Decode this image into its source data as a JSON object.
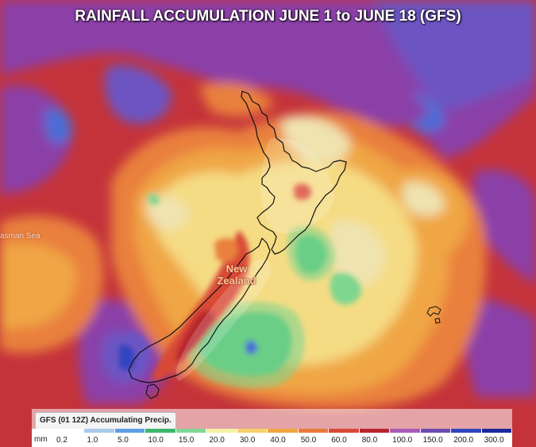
{
  "title": "RAINFALL ACCUMULATION JUNE 1 to JUNE 18 (GFS)",
  "labels": {
    "sea": "asman Sea",
    "country": "New Zealand"
  },
  "legend": {
    "title": "GFS (01 12Z) Accumulating Precip.",
    "unit": "mm",
    "items": [
      {
        "value": "0.2",
        "color": "#ffffff"
      },
      {
        "value": "1.0",
        "color": "#aacbea"
      },
      {
        "value": "5.0",
        "color": "#5f9ee6"
      },
      {
        "value": "10.0",
        "color": "#3fb66e"
      },
      {
        "value": "15.0",
        "color": "#7fd994"
      },
      {
        "value": "20.0",
        "color": "#f6f1a8"
      },
      {
        "value": "30.0",
        "color": "#f7cf6b"
      },
      {
        "value": "40.0",
        "color": "#f0a440"
      },
      {
        "value": "50.0",
        "color": "#ea7a3c"
      },
      {
        "value": "60.0",
        "color": "#d94936"
      },
      {
        "value": "80.0",
        "color": "#b8262e"
      },
      {
        "value": "100.0",
        "color": "#a85bb8"
      },
      {
        "value": "150.0",
        "color": "#6b4bb0"
      },
      {
        "value": "200.0",
        "color": "#3045c0"
      },
      {
        "value": "300.0",
        "color": "#1a2a9a"
      }
    ]
  },
  "colors": {
    "base": "#c4333a",
    "deep_red": "#a3243a",
    "purple": "#8b3fa8",
    "violet": "#6c55c2",
    "blue": "#4b6dd6",
    "orange": "#e9803c",
    "amber": "#f0a644",
    "yellow": "#f5dc84",
    "cream": "#efe3b0",
    "green": "#4cc27a",
    "light_green": "#7fd68f",
    "coast": "#111111"
  }
}
